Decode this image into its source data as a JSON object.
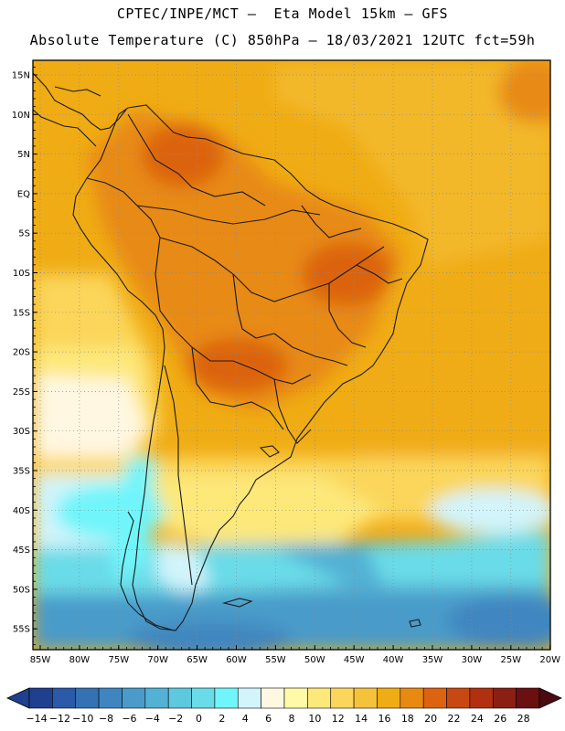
{
  "header": {
    "line1": "CPTEC/INPE/MCT –  Eta Model 15km – GFS",
    "line2": "Absolute Temperature (C) 850hPa – 18/03/2021 12UTC fct=59h"
  },
  "map": {
    "region": "South America",
    "lat_labels": [
      "15N",
      "10N",
      "5N",
      "EQ",
      "5S",
      "10S",
      "15S",
      "20S",
      "25S",
      "30S",
      "35S",
      "40S",
      "45S",
      "50S",
      "55S"
    ],
    "lon_labels": [
      "85W",
      "80W",
      "75W",
      "70W",
      "65W",
      "60W",
      "55W",
      "50W",
      "45W",
      "40W",
      "35W",
      "30W",
      "25W",
      "20W"
    ]
  },
  "colorbar": {
    "labels": [
      "-14",
      "-12",
      "-10",
      "-8",
      "-6",
      "-4",
      "-2",
      "0",
      "2",
      "4",
      "6",
      "8",
      "10",
      "12",
      "14",
      "16",
      "18",
      "20",
      "22",
      "24",
      "26",
      "28"
    ],
    "colors": [
      "#1f3f8f",
      "#2a5aa8",
      "#3472b4",
      "#3f86c0",
      "#4a9bc9",
      "#52b1d4",
      "#5ec8df",
      "#6adbe8",
      "#6ff5fa",
      "#d2f4fb",
      "#fff7e2",
      "#fffaa8",
      "#fde87a",
      "#fbd65a",
      "#f5c23c",
      "#f0ac14",
      "#e88a12",
      "#dc6410",
      "#c84812",
      "#b0300f",
      "#8a1f12",
      "#6a1010"
    ]
  },
  "colors": {
    "frame": "#000000",
    "grid": "#8a8a8a",
    "land_line": "#1a1a1a"
  }
}
